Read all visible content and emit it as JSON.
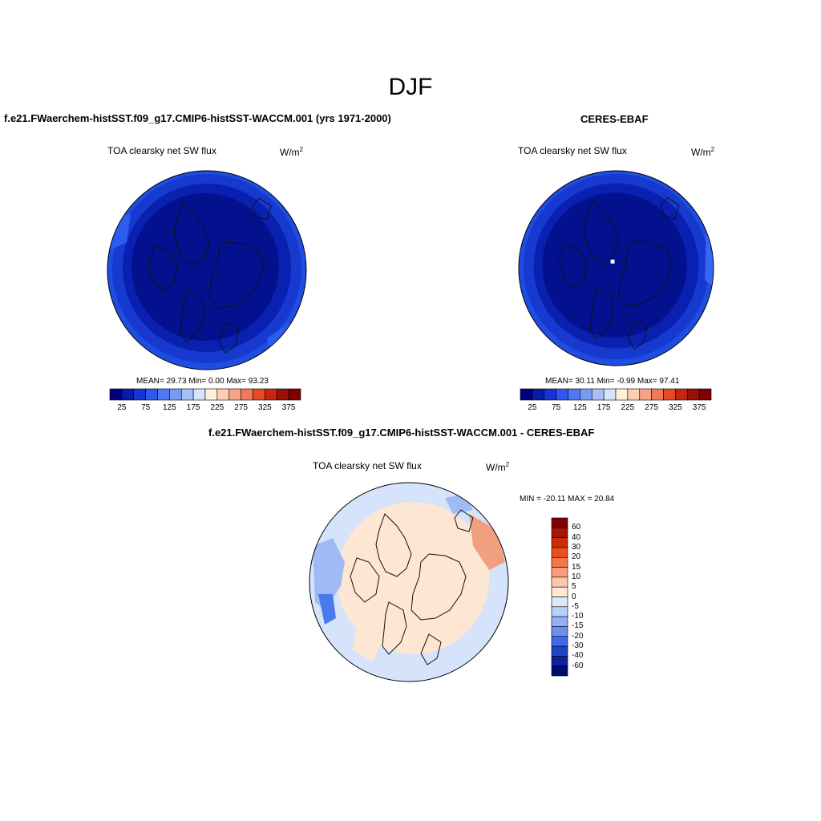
{
  "title": "DJF",
  "panels": [
    {
      "id": "model",
      "title": "f.e21.FWaerchem-histSST.f09_g17.CMIP6-histSST-WACCM.001 (yrs 1971-2000)",
      "field": "TOA clearsky net SW flux",
      "units": "W/m",
      "units_sup": "2",
      "stats": "MEAN=  29.73  Min=   0.00  Max=  93.23",
      "colorbar": {
        "tick_labels": [
          "25",
          "75",
          "125",
          "175",
          "225",
          "275",
          "325",
          "375"
        ],
        "colors": [
          "#00007f",
          "#0a1aa8",
          "#1736d1",
          "#2f58f0",
          "#5078f5",
          "#7a9bf5",
          "#a7c0f7",
          "#d5e3fb",
          "#fff0dc",
          "#fccfb2",
          "#f6a485",
          "#ef7b56",
          "#e54a26",
          "#c6260f",
          "#991005",
          "#800000"
        ]
      }
    },
    {
      "id": "obs",
      "title": "CERES-EBAF",
      "field": "TOA clearsky net SW flux",
      "units": "W/m",
      "units_sup": "2",
      "stats": "MEAN=  30.11  Min=  -0.99  Max=  97.41",
      "colorbar": {
        "tick_labels": [
          "25",
          "75",
          "125",
          "175",
          "225",
          "275",
          "325",
          "375"
        ]
      }
    },
    {
      "id": "diff",
      "title": "f.e21.FWaerchem-histSST.f09_g17.CMIP6-histSST-WACCM.001 - CERES-EBAF",
      "field": "TOA clearsky net SW flux",
      "units": "W/m",
      "units_sup": "2",
      "stats": "MIN = -20.11 MAX =  20.84",
      "colorbar": {
        "tick_labels": [
          "60",
          "40",
          "30",
          "20",
          "15",
          "10",
          "5",
          "0",
          "-5",
          "-10",
          "-15",
          "-20",
          "-30",
          "-40",
          "-60"
        ],
        "colors": [
          "#800000",
          "#a81405",
          "#cc2b0e",
          "#e8501f",
          "#f4774a",
          "#f89d77",
          "#fbc7a8",
          "#fde9d4",
          "#d9e8fb",
          "#b9d0f8",
          "#92b2f6",
          "#6a90f2",
          "#3f6ae8",
          "#1f43c9",
          "#0b23a0",
          "#000a70"
        ]
      }
    }
  ]
}
